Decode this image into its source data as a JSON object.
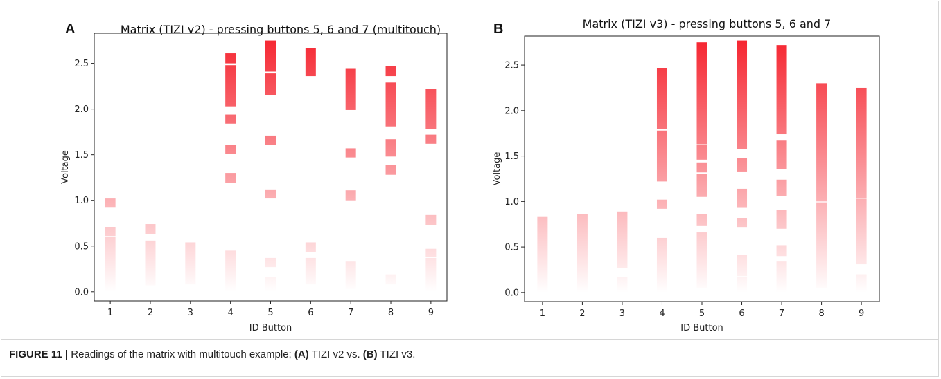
{
  "figure": {
    "caption_label": "FIGURE 11 |",
    "caption_parts": [
      {
        "text": " Readings of the matrix with multitouch example; ",
        "bold": false
      },
      {
        "text": "(A)",
        "bold": true
      },
      {
        "text": " TIZI v2 vs. ",
        "bold": false
      },
      {
        "text": "(B)",
        "bold": true
      },
      {
        "text": " TIZI v3.",
        "bold": false
      }
    ]
  },
  "colors": {
    "bar": "#f5222d",
    "axis": "#222222"
  },
  "chart_data": [
    {
      "panel": "A",
      "type": "bar",
      "title": "Matrix (TIZI v2) - pressing buttons 5, 6 and 7 (multitouch)",
      "xlabel": "ID Button",
      "ylabel": "Voltage",
      "xlim": [
        0.6,
        9.4
      ],
      "ylim": [
        -0.1,
        2.83
      ],
      "xticks": [
        1,
        2,
        3,
        4,
        5,
        6,
        7,
        8,
        9
      ],
      "yticks": [
        0.0,
        0.5,
        1.0,
        1.5,
        2.0,
        2.5
      ],
      "ytick_labels": [
        "0.0",
        "0.5",
        "1.0",
        "1.5",
        "2.0",
        "2.5"
      ],
      "series": [
        {
          "x": 1,
          "segments": [
            [
              0.0,
              0.6
            ],
            [
              0.61,
              0.71
            ],
            [
              0.92,
              1.02
            ]
          ]
        },
        {
          "x": 2,
          "segments": [
            [
              0.07,
              0.56
            ],
            [
              0.63,
              0.74
            ]
          ]
        },
        {
          "x": 3,
          "segments": [
            [
              0.08,
              0.54
            ]
          ]
        },
        {
          "x": 4,
          "segments": [
            [
              0.0,
              0.45
            ],
            [
              1.19,
              1.3
            ],
            [
              1.51,
              1.61
            ],
            [
              1.84,
              1.94
            ],
            [
              2.03,
              2.48
            ],
            [
              2.5,
              2.61
            ]
          ]
        },
        {
          "x": 5,
          "segments": [
            [
              0.0,
              0.16
            ],
            [
              0.27,
              0.37
            ],
            [
              1.02,
              1.12
            ],
            [
              1.61,
              1.71
            ],
            [
              2.15,
              2.39
            ],
            [
              2.41,
              2.75
            ]
          ]
        },
        {
          "x": 6,
          "segments": [
            [
              0.08,
              0.37
            ],
            [
              0.43,
              0.54
            ],
            [
              2.36,
              2.67
            ]
          ]
        },
        {
          "x": 7,
          "segments": [
            [
              0.03,
              0.33
            ],
            [
              1.0,
              1.11
            ],
            [
              1.47,
              1.57
            ],
            [
              1.99,
              2.44
            ]
          ]
        },
        {
          "x": 8,
          "segments": [
            [
              0.08,
              0.19
            ],
            [
              1.28,
              1.39
            ],
            [
              1.48,
              1.67
            ],
            [
              1.81,
              2.29
            ],
            [
              2.36,
              2.47
            ]
          ]
        },
        {
          "x": 9,
          "segments": [
            [
              0.0,
              0.37
            ],
            [
              0.38,
              0.47
            ],
            [
              0.73,
              0.84
            ],
            [
              1.62,
              1.72
            ],
            [
              1.78,
              2.22
            ]
          ]
        }
      ]
    },
    {
      "panel": "B",
      "type": "bar",
      "title": "Matrix (TIZI v3) - pressing buttons 5, 6 and 7",
      "xlabel": "ID Button",
      "ylabel": "Voltage",
      "xlim": [
        0.55,
        9.45
      ],
      "ylim": [
        -0.1,
        2.82
      ],
      "xticks": [
        1,
        2,
        3,
        4,
        5,
        6,
        7,
        8,
        9
      ],
      "yticks": [
        0.0,
        0.5,
        1.0,
        1.5,
        2.0,
        2.5
      ],
      "ytick_labels": [
        "0.0",
        "0.5",
        "1.0",
        "1.5",
        "2.0",
        "2.5"
      ],
      "series": [
        {
          "x": 1,
          "segments": [
            [
              0.0,
              0.83
            ]
          ]
        },
        {
          "x": 2,
          "segments": [
            [
              0.0,
              0.86
            ]
          ]
        },
        {
          "x": 3,
          "segments": [
            [
              0.0,
              0.17
            ],
            [
              0.27,
              0.89
            ]
          ]
        },
        {
          "x": 4,
          "segments": [
            [
              0.0,
              0.6
            ],
            [
              0.92,
              1.02
            ],
            [
              1.22,
              1.78
            ],
            [
              1.8,
              2.47
            ]
          ]
        },
        {
          "x": 5,
          "segments": [
            [
              0.05,
              0.66
            ],
            [
              0.73,
              0.86
            ],
            [
              1.05,
              1.3
            ],
            [
              1.32,
              1.43
            ],
            [
              1.46,
              1.62
            ],
            [
              1.63,
              2.75
            ]
          ]
        },
        {
          "x": 6,
          "segments": [
            [
              0.0,
              0.17
            ],
            [
              0.18,
              0.41
            ],
            [
              0.72,
              0.82
            ],
            [
              0.93,
              1.14
            ],
            [
              1.33,
              1.48
            ],
            [
              1.58,
              2.77
            ]
          ]
        },
        {
          "x": 7,
          "segments": [
            [
              0.0,
              0.34
            ],
            [
              0.4,
              0.52
            ],
            [
              0.7,
              0.91
            ],
            [
              1.06,
              1.24
            ],
            [
              1.36,
              1.67
            ],
            [
              1.74,
              2.72
            ]
          ]
        },
        {
          "x": 8,
          "segments": [
            [
              0.05,
              0.99
            ],
            [
              1.0,
              2.3
            ]
          ]
        },
        {
          "x": 9,
          "segments": [
            [
              0.0,
              0.2
            ],
            [
              0.31,
              1.03
            ],
            [
              1.04,
              2.25
            ]
          ]
        }
      ]
    }
  ]
}
